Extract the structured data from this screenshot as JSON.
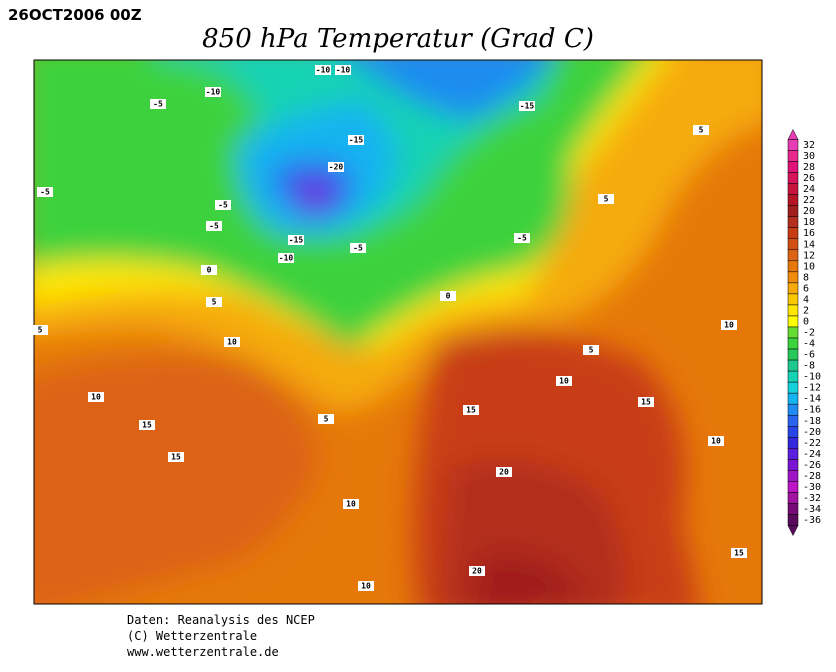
{
  "header": {
    "date": "26OCT2006 00Z",
    "title": "850 hPa Temperatur (Grad C)"
  },
  "footer": {
    "lines": [
      "Daten: Reanalysis des NCEP",
      "(C) Wetterzentrale",
      "www.wetterzentrale.de"
    ]
  },
  "colorbar": {
    "levels": [
      32,
      30,
      28,
      26,
      24,
      22,
      20,
      18,
      16,
      14,
      12,
      10,
      8,
      6,
      4,
      2,
      0,
      -2,
      -4,
      -6,
      -8,
      -10,
      -12,
      -14,
      -16,
      -18,
      -20,
      -22,
      -24,
      -26,
      -28,
      -30,
      -32,
      -34,
      -36
    ],
    "colors": [
      "#e83cb4",
      "#e8288c",
      "#e01478",
      "#d8145a",
      "#c8143c",
      "#b41428",
      "#a01e1e",
      "#b42d1e",
      "#c83c14",
      "#d25014",
      "#dc6414",
      "#e6780a",
      "#f08c0a",
      "#f5aa0a",
      "#fac800",
      "#ffe600",
      "#ffff00",
      "#64dc32",
      "#3cd23c",
      "#28c85a",
      "#1ec88c",
      "#14d2b4",
      "#14d2dc",
      "#14b4f0",
      "#1e8cf0",
      "#2864f0",
      "#2846e6",
      "#3228dc",
      "#5a1edc",
      "#7814d2",
      "#a014c8",
      "#be14c8",
      "#a014a0",
      "#780a78",
      "#5a0a5a"
    ]
  },
  "map": {
    "contour_labels": [
      -10,
      -10,
      -10,
      -5,
      -15,
      -15,
      -20,
      -5,
      -5,
      -15,
      -10,
      -5,
      -5,
      5,
      5,
      -5,
      0,
      0,
      5,
      5,
      10,
      10,
      5,
      10,
      10,
      15,
      15,
      15,
      15,
      10,
      5,
      20,
      10,
      20,
      15,
      10
    ]
  }
}
